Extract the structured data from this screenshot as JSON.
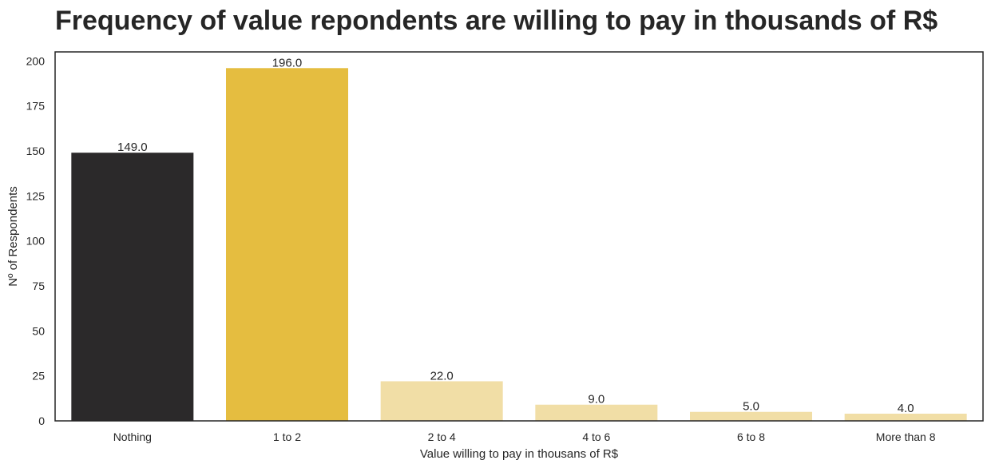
{
  "chart_data": {
    "type": "bar",
    "title": "Frequency of value repondents are willing to pay in thousands of R$",
    "xlabel": "Value willing to pay in thousans of R$",
    "ylabel": "Nº of Respondents",
    "categories": [
      "Nothing",
      "1 to 2",
      "2 to 4",
      "4 to 6",
      "6 to 8",
      "More than 8"
    ],
    "values": [
      149,
      196,
      22,
      9,
      5,
      4
    ],
    "data_labels": [
      "149.0",
      "196.0",
      "22.0",
      "9.0",
      "5.0",
      "4.0"
    ],
    "colors": [
      "#2b292a",
      "#e5bd40",
      "#f1dea6",
      "#f1dea6",
      "#f1dea6",
      "#f1dea6"
    ],
    "ylim": [
      0,
      205
    ],
    "yticks": [
      0,
      25,
      50,
      75,
      100,
      125,
      150,
      175,
      200
    ],
    "grid": false,
    "legend": "none"
  }
}
